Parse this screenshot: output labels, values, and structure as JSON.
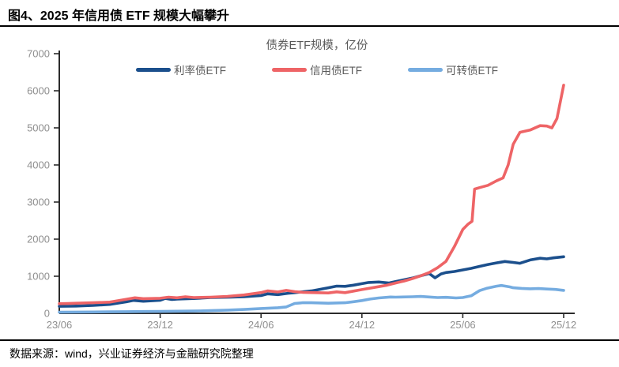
{
  "header": {
    "title": "图4、2025 年信用债 ETF 规模大幅攀升"
  },
  "chart_data": {
    "type": "line",
    "title": "债券ETF规模，亿份",
    "legend_position": "top",
    "grid": false,
    "x_axis": {
      "tick_labels": [
        "23/06",
        "23/12",
        "24/06",
        "24/12",
        "25/06",
        "25/12"
      ],
      "tick_months": [
        0,
        6,
        12,
        18,
        24,
        30
      ],
      "unit": "year/month"
    },
    "y_axis": {
      "min": 0,
      "max": 7000,
      "ticks": [
        0,
        1000,
        2000,
        3000,
        4000,
        5000,
        6000,
        7000
      ]
    },
    "series": [
      {
        "name": "利率债ETF",
        "color": "#1B4F8C",
        "points": [
          [
            0,
            190
          ],
          [
            0.5,
            192
          ],
          [
            1,
            196
          ],
          [
            2,
            212
          ],
          [
            3,
            240
          ],
          [
            4,
            310
          ],
          [
            4.4,
            348
          ],
          [
            5,
            325
          ],
          [
            6,
            352
          ],
          [
            6.3,
            402
          ],
          [
            6.7,
            372
          ],
          [
            7,
            385
          ],
          [
            8,
            400
          ],
          [
            9,
            425
          ],
          [
            10,
            435
          ],
          [
            11,
            448
          ],
          [
            12,
            478
          ],
          [
            12.4,
            525
          ],
          [
            13,
            505
          ],
          [
            13.6,
            540
          ],
          [
            14,
            558
          ],
          [
            15,
            605
          ],
          [
            16,
            690
          ],
          [
            16.5,
            735
          ],
          [
            17,
            728
          ],
          [
            17.5,
            760
          ],
          [
            18,
            800
          ],
          [
            18.4,
            832
          ],
          [
            19,
            845
          ],
          [
            19.6,
            818
          ],
          [
            20,
            858
          ],
          [
            20.5,
            905
          ],
          [
            21,
            952
          ],
          [
            21.5,
            1012
          ],
          [
            22,
            1072
          ],
          [
            22.35,
            958
          ],
          [
            22.7,
            1062
          ],
          [
            23,
            1100
          ],
          [
            23.5,
            1128
          ],
          [
            24,
            1170
          ],
          [
            24.5,
            1212
          ],
          [
            25,
            1265
          ],
          [
            25.5,
            1318
          ],
          [
            26,
            1360
          ],
          [
            26.5,
            1398
          ],
          [
            27,
            1372
          ],
          [
            27.4,
            1348
          ],
          [
            28,
            1438
          ],
          [
            28.6,
            1486
          ],
          [
            29,
            1468
          ],
          [
            29.4,
            1495
          ],
          [
            30,
            1525
          ]
        ]
      },
      {
        "name": "信用债ETF",
        "color": "#EE6466",
        "points": [
          [
            0,
            260
          ],
          [
            0.5,
            264
          ],
          [
            1,
            272
          ],
          [
            2,
            286
          ],
          [
            3,
            302
          ],
          [
            4,
            380
          ],
          [
            4.5,
            420
          ],
          [
            5,
            396
          ],
          [
            6,
            406
          ],
          [
            6.5,
            436
          ],
          [
            7,
            420
          ],
          [
            7.5,
            446
          ],
          [
            8,
            426
          ],
          [
            9,
            436
          ],
          [
            10,
            456
          ],
          [
            11,
            496
          ],
          [
            12,
            560
          ],
          [
            12.4,
            606
          ],
          [
            13,
            576
          ],
          [
            13.5,
            620
          ],
          [
            14,
            586
          ],
          [
            14.5,
            566
          ],
          [
            15,
            560
          ],
          [
            16,
            548
          ],
          [
            16.5,
            578
          ],
          [
            17,
            558
          ],
          [
            17.5,
            600
          ],
          [
            18,
            640
          ],
          [
            19,
            720
          ],
          [
            19.5,
            760
          ],
          [
            20,
            816
          ],
          [
            20.5,
            870
          ],
          [
            21,
            936
          ],
          [
            21.5,
            1012
          ],
          [
            22,
            1100
          ],
          [
            22.5,
            1230
          ],
          [
            23,
            1400
          ],
          [
            23.5,
            1800
          ],
          [
            24,
            2260
          ],
          [
            24.3,
            2400
          ],
          [
            24.55,
            2480
          ],
          [
            24.7,
            3350
          ],
          [
            25,
            3390
          ],
          [
            25.5,
            3450
          ],
          [
            26,
            3570
          ],
          [
            26.4,
            3650
          ],
          [
            26.7,
            4000
          ],
          [
            27,
            4560
          ],
          [
            27.4,
            4880
          ],
          [
            28,
            4940
          ],
          [
            28.6,
            5060
          ],
          [
            29,
            5050
          ],
          [
            29.3,
            5000
          ],
          [
            29.6,
            5250
          ],
          [
            30,
            6150
          ]
        ]
      },
      {
        "name": "可转债ETF",
        "color": "#75ACE0",
        "points": [
          [
            0,
            30
          ],
          [
            1,
            33
          ],
          [
            2,
            36
          ],
          [
            3,
            40
          ],
          [
            4,
            44
          ],
          [
            5,
            48
          ],
          [
            6,
            52
          ],
          [
            7,
            58
          ],
          [
            8,
            62
          ],
          [
            9,
            72
          ],
          [
            10,
            88
          ],
          [
            11,
            105
          ],
          [
            12,
            130
          ],
          [
            13,
            150
          ],
          [
            13.5,
            172
          ],
          [
            14,
            265
          ],
          [
            14.5,
            288
          ],
          [
            15,
            285
          ],
          [
            16,
            272
          ],
          [
            17,
            285
          ],
          [
            17.5,
            312
          ],
          [
            18,
            345
          ],
          [
            18.5,
            385
          ],
          [
            19,
            415
          ],
          [
            19.7,
            440
          ],
          [
            20,
            436
          ],
          [
            21,
            446
          ],
          [
            21.5,
            456
          ],
          [
            22,
            440
          ],
          [
            22.5,
            425
          ],
          [
            23,
            432
          ],
          [
            23.6,
            415
          ],
          [
            24,
            425
          ],
          [
            24.5,
            472
          ],
          [
            25,
            612
          ],
          [
            25.4,
            672
          ],
          [
            26,
            732
          ],
          [
            26.3,
            752
          ],
          [
            26.8,
            712
          ],
          [
            27,
            690
          ],
          [
            27.5,
            672
          ],
          [
            28,
            662
          ],
          [
            28.5,
            668
          ],
          [
            29,
            656
          ],
          [
            29.5,
            645
          ],
          [
            30,
            620
          ]
        ]
      }
    ]
  },
  "footer": {
    "text": "数据来源：wind，兴业证券经济与金融研究院整理"
  },
  "colors": {
    "axis": "#2b2b2b",
    "tick_label": "#8f8f8f",
    "chart_title_text": "#595959",
    "legend_text": "#595959"
  }
}
